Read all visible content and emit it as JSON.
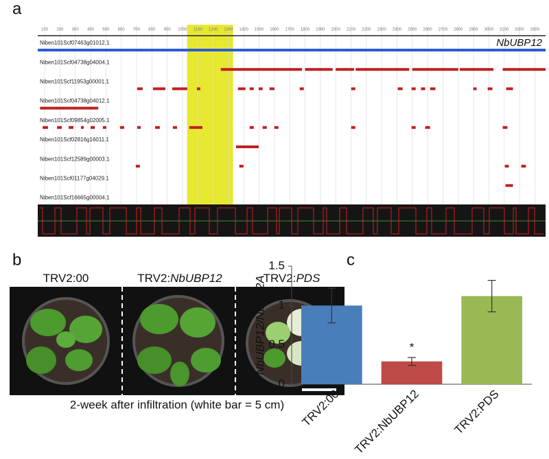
{
  "panel_labels": [
    "a",
    "b",
    "c"
  ],
  "panel_a": {
    "ruler_ticks": [
      100,
      200,
      300,
      400,
      500,
      600,
      700,
      800,
      900,
      1000,
      1100,
      1200,
      1300,
      1400,
      1500,
      1600,
      1700,
      1800,
      1900,
      2000,
      2100,
      2200,
      2300,
      2400,
      2500,
      2600,
      2700,
      2800,
      2900,
      3000,
      3100,
      3200,
      3300
    ],
    "xlim": [
      55,
      3370
    ],
    "highlight": [
      1030,
      1330
    ],
    "gene_label": "NbUBP12",
    "tracks": [
      {
        "name": "Niben101Scf07463g01012.1",
        "color": "#2a5bd7",
        "hits": [
          [
            55,
            3370
          ]
        ]
      },
      {
        "name": "Niben101Scf04738g04004.1",
        "color": "#c0201e",
        "hits": [
          [
            1250,
            1780
          ],
          [
            1800,
            1980
          ],
          [
            2000,
            2120
          ],
          [
            2130,
            2480
          ],
          [
            2500,
            2800
          ],
          [
            2810,
            3030
          ],
          [
            3090,
            3370
          ]
        ]
      },
      {
        "name": "Niben101Scf11953g00001.1",
        "color": "#c0201e",
        "hits": [
          [
            704,
            740
          ],
          [
            807,
            888
          ],
          [
            933,
            1031
          ],
          [
            1094,
            1116
          ],
          [
            1362,
            1411
          ],
          [
            1438,
            1465
          ],
          [
            1497,
            1523
          ],
          [
            1568,
            1600
          ],
          [
            1765,
            1792
          ],
          [
            2101,
            2128
          ],
          [
            2405,
            2437
          ],
          [
            2495,
            2522
          ],
          [
            2557,
            2584
          ],
          [
            2616,
            2651
          ],
          [
            2898,
            2920
          ],
          [
            2992,
            3023
          ],
          [
            3113,
            3157
          ]
        ]
      },
      {
        "name": "Niben101Scf04738g04012.1",
        "color": "#c0201e",
        "hits": [
          [
            70,
            450
          ]
        ]
      },
      {
        "name": "Niben101Scf09854g02005.1",
        "color": "#c0201e",
        "hits": [
          [
            87,
            122
          ],
          [
            181,
            212
          ],
          [
            257,
            288
          ],
          [
            337,
            355
          ],
          [
            400,
            427
          ],
          [
            480,
            503
          ],
          [
            592,
            619
          ],
          [
            704,
            727
          ],
          [
            821,
            852
          ],
          [
            937,
            964
          ],
          [
            1044,
            1130
          ],
          [
            1438,
            1465
          ],
          [
            1523,
            1550
          ],
          [
            1600,
            1626
          ],
          [
            2101,
            2128
          ],
          [
            2495,
            2522
          ],
          [
            2584,
            2616
          ],
          [
            3090,
            3121
          ]
        ]
      },
      {
        "name": "Niben101Scf02816g16011.1",
        "color": "#c0201e",
        "hits": [
          [
            1349,
            1497
          ]
        ]
      },
      {
        "name": "Niben101Scf12589g00003.1",
        "color": "#c0201e",
        "hits": [
          [
            695,
            722
          ],
          [
            1371,
            1398
          ],
          [
            3104,
            3130
          ],
          [
            3211,
            3242
          ]
        ]
      },
      {
        "name": "Niben101Scf01177g04029.1",
        "color": "#c0201e",
        "hits": [
          [
            3108,
            3157
          ]
        ]
      },
      {
        "name": "Niben101Scf16665g00004.1",
        "color": "#c0201e",
        "hits": []
      }
    ]
  },
  "panel_b": {
    "labels": [
      {
        "prefix": "TRV2:00"
      },
      {
        "prefix": "TRV2:",
        "italic": "NbUBP12"
      },
      {
        "prefix": "TRV2:",
        "italic": "PDS"
      }
    ],
    "caption": "2-week after infiltration (white bar = 5 cm)"
  },
  "chart_data": {
    "type": "bar",
    "y_label": "NbUBP12/NbPP2A",
    "categories": [
      "TRV2:00",
      "TRV2:NbUBP12",
      "TRV2:PDS"
    ],
    "values": [
      1.0,
      0.29,
      1.12
    ],
    "errors": [
      0.22,
      0.05,
      0.2
    ],
    "colors": [
      "#4a7ebb",
      "#be4b48",
      "#98b954"
    ],
    "annotation": "*",
    "ylim": [
      0,
      1.5
    ],
    "yticks": [
      0,
      0.5,
      1,
      1.5
    ]
  }
}
